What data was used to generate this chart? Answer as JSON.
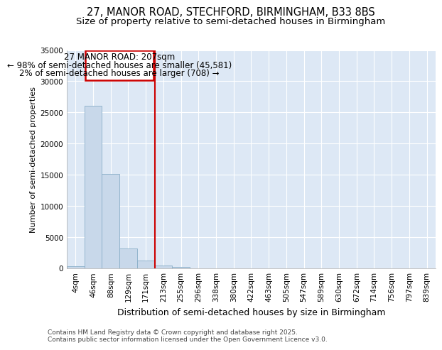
{
  "title1": "27, MANOR ROAD, STECHFORD, BIRMINGHAM, B33 8BS",
  "title2": "Size of property relative to semi-detached houses in Birmingham",
  "xlabel": "Distribution of semi-detached houses by size in Birmingham",
  "ylabel": "Number of semi-detached properties",
  "categories": [
    "4sqm",
    "46sqm",
    "88sqm",
    "129sqm",
    "171sqm",
    "213sqm",
    "255sqm",
    "296sqm",
    "338sqm",
    "380sqm",
    "422sqm",
    "463sqm",
    "505sqm",
    "547sqm",
    "589sqm",
    "630sqm",
    "672sqm",
    "714sqm",
    "756sqm",
    "797sqm",
    "839sqm"
  ],
  "values": [
    300,
    26100,
    15100,
    3200,
    1300,
    400,
    200,
    50,
    20,
    10,
    5,
    2,
    1,
    1,
    0,
    0,
    0,
    0,
    0,
    0,
    0
  ],
  "bar_color": "#c8d8ea",
  "bar_edgecolor": "#8aaec8",
  "vline_color": "#cc0000",
  "annotation_text_line1": "27 MANOR ROAD: 207sqm",
  "annotation_text_line2": "← 98% of semi-detached houses are smaller (45,581)",
  "annotation_text_line3": "2% of semi-detached houses are larger (708) →",
  "annotation_box_color": "#cc0000",
  "ylim": [
    0,
    35000
  ],
  "yticks": [
    0,
    5000,
    10000,
    15000,
    20000,
    25000,
    30000,
    35000
  ],
  "bg_color": "#ffffff",
  "plot_bg_color": "#dde8f5",
  "grid_color": "#ffffff",
  "footnote": "Contains HM Land Registry data © Crown copyright and database right 2025.\nContains public sector information licensed under the Open Government Licence v3.0.",
  "title1_fontsize": 10.5,
  "title2_fontsize": 9.5,
  "xlabel_fontsize": 9,
  "ylabel_fontsize": 8,
  "tick_fontsize": 7.5,
  "annotation_fontsize": 8.5,
  "footnote_fontsize": 6.5
}
